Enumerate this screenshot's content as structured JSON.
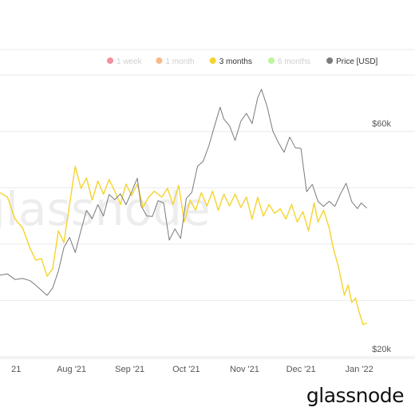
{
  "brand": "glassnode",
  "watermark": "glassnode",
  "legend": [
    {
      "label": "1 week",
      "color": "#f06a7c",
      "active": false
    },
    {
      "label": "1 month",
      "color": "#f5a25d",
      "active": false
    },
    {
      "label": "3 months",
      "color": "#f6d32c",
      "active": true
    },
    {
      "label": "6 months",
      "color": "#a8f07a",
      "active": false
    },
    {
      "label": "Price [USD]",
      "color": "#7a7a7a",
      "active": true
    }
  ],
  "chart_data": {
    "type": "line",
    "x_range": [
      "2021-06-24",
      "2022-01-06"
    ],
    "x_ticks": [
      {
        "date": "2021-06-30",
        "label": "21"
      },
      {
        "date": "2021-08-01",
        "label": "Aug '21"
      },
      {
        "date": "2021-09-01",
        "label": "Sep '21"
      },
      {
        "date": "2021-10-01",
        "label": "Oct '21"
      },
      {
        "date": "2021-11-01",
        "label": "Nov '21"
      },
      {
        "date": "2021-12-01",
        "label": "Dec '21"
      },
      {
        "date": "2022-01-01",
        "label": "Jan '22"
      }
    ],
    "y_right": {
      "ticks": [
        {
          "value": 20000,
          "label": "$20k"
        },
        {
          "value": 60000,
          "label": "$60k"
        }
      ],
      "range": [
        20000,
        72000
      ]
    },
    "series": [
      {
        "name": "3 months",
        "color": "#f6d32c",
        "axis": "left",
        "points": [
          [
            "2021-06-24",
            0.56
          ],
          [
            "2021-06-28",
            0.545
          ],
          [
            "2021-07-02",
            0.47
          ],
          [
            "2021-07-06",
            0.44
          ],
          [
            "2021-07-10",
            0.37
          ],
          [
            "2021-07-13",
            0.33
          ],
          [
            "2021-07-16",
            0.335
          ],
          [
            "2021-07-19",
            0.275
          ],
          [
            "2021-07-22",
            0.3
          ],
          [
            "2021-07-25",
            0.43
          ],
          [
            "2021-07-28",
            0.39
          ],
          [
            "2021-07-31",
            0.52
          ],
          [
            "2021-08-03",
            0.65
          ],
          [
            "2021-08-06",
            0.575
          ],
          [
            "2021-08-09",
            0.61
          ],
          [
            "2021-08-12",
            0.535
          ],
          [
            "2021-08-15",
            0.6
          ],
          [
            "2021-08-18",
            0.555
          ],
          [
            "2021-08-21",
            0.605
          ],
          [
            "2021-08-24",
            0.565
          ],
          [
            "2021-08-27",
            0.52
          ],
          [
            "2021-08-30",
            0.59
          ],
          [
            "2021-09-02",
            0.55
          ],
          [
            "2021-09-05",
            0.59
          ],
          [
            "2021-09-08",
            0.51
          ],
          [
            "2021-09-11",
            0.545
          ],
          [
            "2021-09-14",
            0.565
          ],
          [
            "2021-09-18",
            0.545
          ],
          [
            "2021-09-21",
            0.575
          ],
          [
            "2021-09-24",
            0.52
          ],
          [
            "2021-09-27",
            0.585
          ],
          [
            "2021-09-30",
            0.46
          ],
          [
            "2021-10-03",
            0.535
          ],
          [
            "2021-10-06",
            0.5
          ],
          [
            "2021-10-09",
            0.56
          ],
          [
            "2021-10-12",
            0.515
          ],
          [
            "2021-10-15",
            0.565
          ],
          [
            "2021-10-18",
            0.5
          ],
          [
            "2021-10-21",
            0.555
          ],
          [
            "2021-10-24",
            0.515
          ],
          [
            "2021-10-27",
            0.555
          ],
          [
            "2021-10-30",
            0.51
          ],
          [
            "2021-11-02",
            0.545
          ],
          [
            "2021-11-05",
            0.47
          ],
          [
            "2021-11-08",
            0.545
          ],
          [
            "2021-11-11",
            0.48
          ],
          [
            "2021-11-14",
            0.52
          ],
          [
            "2021-11-17",
            0.49
          ],
          [
            "2021-11-20",
            0.505
          ],
          [
            "2021-11-23",
            0.47
          ],
          [
            "2021-11-26",
            0.52
          ],
          [
            "2021-11-29",
            0.46
          ],
          [
            "2021-12-02",
            0.495
          ],
          [
            "2021-12-05",
            0.43
          ],
          [
            "2021-12-08",
            0.525
          ],
          [
            "2021-12-10",
            0.46
          ],
          [
            "2021-12-13",
            0.5
          ],
          [
            "2021-12-16",
            0.44
          ],
          [
            "2021-12-18",
            0.375
          ],
          [
            "2021-12-21",
            0.305
          ],
          [
            "2021-12-24",
            0.21
          ],
          [
            "2021-12-26",
            0.245
          ],
          [
            "2021-12-28",
            0.185
          ],
          [
            "2021-12-30",
            0.2
          ],
          [
            "2022-01-01",
            0.15
          ],
          [
            "2022-01-03",
            0.11
          ],
          [
            "2022-01-05",
            0.115
          ]
        ]
      },
      {
        "name": "Price [USD]",
        "color": "#7a7a7a",
        "axis": "right",
        "points": [
          [
            "2021-06-24",
            34500
          ],
          [
            "2021-06-28",
            34700
          ],
          [
            "2021-07-02",
            33700
          ],
          [
            "2021-07-06",
            33900
          ],
          [
            "2021-07-10",
            33500
          ],
          [
            "2021-07-13",
            32700
          ],
          [
            "2021-07-16",
            31800
          ],
          [
            "2021-07-19",
            30900
          ],
          [
            "2021-07-22",
            32200
          ],
          [
            "2021-07-25",
            35200
          ],
          [
            "2021-07-28",
            39400
          ],
          [
            "2021-07-31",
            41200
          ],
          [
            "2021-08-03",
            38500
          ],
          [
            "2021-08-06",
            42400
          ],
          [
            "2021-08-09",
            46000
          ],
          [
            "2021-08-12",
            44500
          ],
          [
            "2021-08-15",
            47000
          ],
          [
            "2021-08-18",
            45000
          ],
          [
            "2021-08-21",
            48800
          ],
          [
            "2021-08-24",
            47900
          ],
          [
            "2021-08-27",
            48900
          ],
          [
            "2021-08-30",
            47000
          ],
          [
            "2021-09-02",
            49300
          ],
          [
            "2021-09-05",
            51700
          ],
          [
            "2021-09-07",
            46800
          ],
          [
            "2021-09-10",
            45000
          ],
          [
            "2021-09-13",
            44900
          ],
          [
            "2021-09-16",
            47700
          ],
          [
            "2021-09-19",
            47300
          ],
          [
            "2021-09-22",
            40700
          ],
          [
            "2021-09-25",
            42700
          ],
          [
            "2021-09-28",
            41000
          ],
          [
            "2021-10-01",
            48100
          ],
          [
            "2021-10-04",
            49200
          ],
          [
            "2021-10-07",
            53800
          ],
          [
            "2021-10-10",
            54700
          ],
          [
            "2021-10-13",
            57400
          ],
          [
            "2021-10-16",
            60900
          ],
          [
            "2021-10-19",
            64300
          ],
          [
            "2021-10-21",
            62200
          ],
          [
            "2021-10-24",
            61000
          ],
          [
            "2021-10-27",
            58400
          ],
          [
            "2021-10-30",
            61800
          ],
          [
            "2021-11-02",
            63200
          ],
          [
            "2021-11-05",
            61400
          ],
          [
            "2021-11-08",
            66000
          ],
          [
            "2021-11-10",
            67500
          ],
          [
            "2021-11-13",
            64400
          ],
          [
            "2021-11-16",
            60100
          ],
          [
            "2021-11-19",
            58000
          ],
          [
            "2021-11-22",
            56300
          ],
          [
            "2021-11-25",
            59000
          ],
          [
            "2021-11-28",
            57100
          ],
          [
            "2021-12-01",
            57000
          ],
          [
            "2021-12-04",
            49300
          ],
          [
            "2021-12-07",
            50600
          ],
          [
            "2021-12-10",
            47600
          ],
          [
            "2021-12-13",
            46700
          ],
          [
            "2021-12-16",
            47600
          ],
          [
            "2021-12-19",
            46700
          ],
          [
            "2021-12-22",
            48900
          ],
          [
            "2021-12-25",
            50800
          ],
          [
            "2021-12-28",
            47500
          ],
          [
            "2021-12-31",
            46300
          ],
          [
            "2022-01-02",
            47300
          ],
          [
            "2022-01-05",
            46400
          ]
        ]
      }
    ],
    "grid": true,
    "legend_position": "top-right"
  }
}
